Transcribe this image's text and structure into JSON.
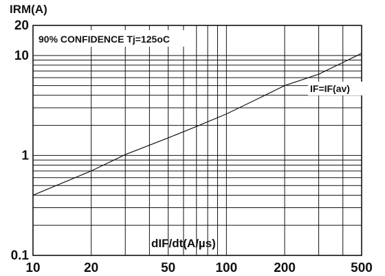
{
  "chart_data": {
    "type": "line",
    "title": "",
    "ylabel": "IRM(A)",
    "xlabel": "dIF/dt(A/µs)",
    "x_scale": "log",
    "y_scale": "log",
    "xlim": [
      10,
      500
    ],
    "ylim": [
      0.1,
      20
    ],
    "x_ticks": [
      "10",
      "20",
      "50",
      "100",
      "200",
      "500"
    ],
    "x_tick_values": [
      10,
      20,
      50,
      100,
      200,
      500
    ],
    "y_ticks": [
      "0.1",
      "1",
      "10",
      "20"
    ],
    "y_tick_values": [
      0.1,
      1,
      10,
      20
    ],
    "grid": true,
    "annotations": {
      "condition": "90% CONFIDENCE Tj=125oC",
      "curve_label": "IF=IF(av)"
    },
    "series": [
      {
        "name": "IF=IF(av)",
        "x": [
          10,
          20,
          30,
          50,
          70,
          100,
          150,
          200,
          300,
          500
        ],
        "y": [
          0.4,
          0.7,
          1.02,
          1.5,
          1.95,
          2.6,
          3.8,
          5.0,
          6.5,
          10.5
        ]
      }
    ]
  }
}
